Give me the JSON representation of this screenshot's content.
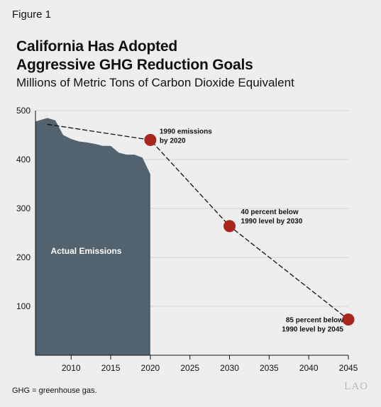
{
  "figure_label": "Figure 1",
  "title_line1": "California Has Adopted",
  "title_line2": "Aggressive GHG Reduction Goals",
  "subtitle": "Millions of Metric Tons of Carbon Dioxide Equivalent",
  "footnote": "GHG = greenhouse gas.",
  "logo_text": "LAO",
  "colors": {
    "area": "#52636f",
    "marker": "#a8261c",
    "grid": "#d2d2d2",
    "line": "#111111"
  },
  "chart_data": {
    "type": "area",
    "title": "California Has Adopted Aggressive GHG Reduction Goals",
    "ylabel": "Millions of Metric Tons of Carbon Dioxide Equivalent",
    "xlim": [
      2005.5,
      2045
    ],
    "ylim": [
      0,
      500
    ],
    "x_ticks": [
      2010,
      2015,
      2020,
      2025,
      2030,
      2035,
      2040,
      2045
    ],
    "y_ticks": [
      100,
      200,
      300,
      400,
      500
    ],
    "grid": true,
    "series": [
      {
        "name": "Actual Emissions",
        "x": [
          2005.5,
          2006,
          2007,
          2008,
          2009,
          2010,
          2011,
          2012,
          2013,
          2014,
          2015,
          2016,
          2017,
          2018,
          2019,
          2020
        ],
        "values": [
          478,
          480,
          485,
          480,
          450,
          442,
          437,
          435,
          432,
          428,
          428,
          414,
          410,
          410,
          404,
          370
        ]
      }
    ],
    "target_line": {
      "x": [
        2007,
        2020,
        2030,
        2045
      ],
      "values": [
        472,
        440,
        264,
        73
      ]
    },
    "targets": [
      {
        "x": 2020,
        "value": 440,
        "label_line1": "1990 emissions",
        "label_line2": "by 2020"
      },
      {
        "x": 2030,
        "value": 264,
        "label_line1": "40 percent below",
        "label_line2": "1990 level by 2030"
      },
      {
        "x": 2045,
        "value": 73,
        "label_line1": "85 percent below",
        "label_line2": "1990 level by 2045"
      }
    ]
  }
}
